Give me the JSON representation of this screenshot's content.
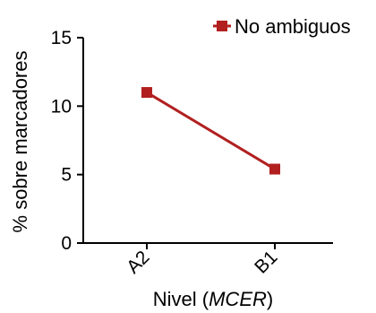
{
  "chart_data": {
    "type": "line",
    "categories": [
      "A2",
      "B1"
    ],
    "series": [
      {
        "name": "No ambiguos",
        "values": [
          11,
          5.4
        ],
        "color": "#b21f1f"
      }
    ],
    "ylabel": "% sobre marcadores",
    "xlabel_prefix": "Nivel (",
    "xlabel_italic": "MCER",
    "xlabel_suffix": ")",
    "ylim": [
      0,
      15
    ],
    "yticks": [
      "0",
      "5",
      "10",
      "15"
    ],
    "grid": false,
    "legend_position": "top-right",
    "marker": "square"
  }
}
